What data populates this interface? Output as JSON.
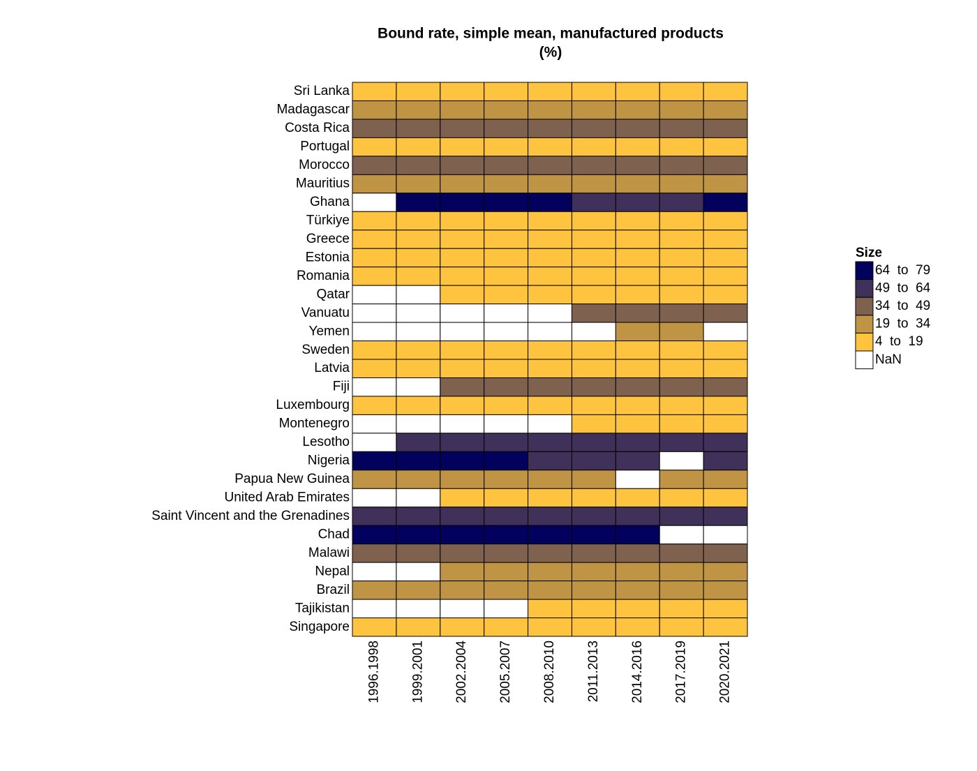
{
  "chart_data": {
    "type": "heatmap",
    "title": "Bound rate, simple mean, manufactured products",
    "subtitle": "(%)",
    "x": [
      "1996.1998",
      "1999.2001",
      "2002.2004",
      "2005.2007",
      "2008.2010",
      "2011.2013",
      "2014.2016",
      "2017.2019",
      "2020.2021"
    ],
    "y": [
      "Sri Lanka",
      "Madagascar",
      "Costa Rica",
      "Portugal",
      "Morocco",
      "Mauritius",
      "Ghana",
      "Türkiye",
      "Greece",
      "Estonia",
      "Romania",
      "Qatar",
      "Vanuatu",
      "Yemen",
      "Sweden",
      "Latvia",
      "Fiji",
      "Luxembourg",
      "Montenegro",
      "Lesotho",
      "Nigeria",
      "Papua New Guinea",
      "United Arab Emirates",
      "Saint Vincent and the Grenadines",
      "Chad",
      "Malawi",
      "Nepal",
      "Brazil",
      "Tajikistan",
      "Singapore"
    ],
    "values": [
      [
        12,
        12,
        12,
        12,
        12,
        12,
        12,
        12,
        12
      ],
      [
        27,
        27,
        27,
        27,
        27,
        27,
        27,
        27,
        27
      ],
      [
        42,
        42,
        42,
        42,
        42,
        42,
        42,
        42,
        42
      ],
      [
        9,
        9,
        9,
        9,
        9,
        9,
        9,
        9,
        9
      ],
      [
        41,
        41,
        41,
        41,
        41,
        41,
        41,
        41,
        41
      ],
      [
        24,
        24,
        24,
        24,
        24,
        24,
        24,
        24,
        24
      ],
      [
        null,
        72,
        72,
        72,
        72,
        58,
        58,
        58,
        70
      ],
      [
        16,
        16,
        16,
        16,
        16,
        16,
        16,
        16,
        16
      ],
      [
        9,
        9,
        9,
        9,
        9,
        9,
        9,
        9,
        9
      ],
      [
        9,
        9,
        9,
        9,
        9,
        9,
        9,
        9,
        9
      ],
      [
        9,
        9,
        9,
        9,
        9,
        9,
        9,
        9,
        9
      ],
      [
        null,
        null,
        15,
        15,
        15,
        15,
        15,
        15,
        15
      ],
      [
        null,
        null,
        null,
        null,
        null,
        45,
        45,
        45,
        45
      ],
      [
        null,
        null,
        null,
        null,
        null,
        null,
        21,
        21,
        null
      ],
      [
        9,
        9,
        9,
        9,
        9,
        9,
        9,
        9,
        9
      ],
      [
        9,
        9,
        9,
        9,
        9,
        9,
        9,
        9,
        9
      ],
      [
        null,
        null,
        40,
        40,
        40,
        40,
        40,
        40,
        40
      ],
      [
        9,
        9,
        9,
        9,
        9,
        9,
        9,
        9,
        9
      ],
      [
        null,
        null,
        null,
        null,
        null,
        5,
        5,
        5,
        5
      ],
      [
        null,
        60,
        60,
        60,
        60,
        60,
        60,
        60,
        60
      ],
      [
        75,
        75,
        75,
        75,
        50,
        50,
        50,
        null,
        50
      ],
      [
        32,
        32,
        32,
        32,
        32,
        32,
        null,
        32,
        32
      ],
      [
        null,
        null,
        15,
        15,
        15,
        15,
        15,
        15,
        15
      ],
      [
        55,
        55,
        55,
        55,
        55,
        55,
        55,
        55,
        55
      ],
      [
        79,
        79,
        79,
        79,
        79,
        79,
        79,
        null,
        null
      ],
      [
        44,
        44,
        44,
        44,
        44,
        44,
        44,
        44,
        44
      ],
      [
        null,
        null,
        26,
        26,
        26,
        26,
        26,
        26,
        26
      ],
      [
        31,
        31,
        31,
        31,
        31,
        31,
        31,
        31,
        31
      ],
      [
        null,
        null,
        null,
        null,
        8,
        8,
        8,
        8,
        8
      ],
      [
        6,
        6,
        6,
        6,
        6,
        6,
        6,
        6,
        6
      ]
    ],
    "legend": {
      "title": "Size",
      "bins": [
        4,
        19,
        34,
        49,
        64,
        79
      ],
      "labels": [
        "4  to  19",
        "19  to  34",
        "34  to  49",
        "49  to  64",
        "64  to  79"
      ],
      "colors": [
        "#ffc43f",
        "#bf9445",
        "#7f614f",
        "#3f3159",
        "#02025e"
      ],
      "na_label": "NaN",
      "na_color": "#ffffff"
    }
  }
}
